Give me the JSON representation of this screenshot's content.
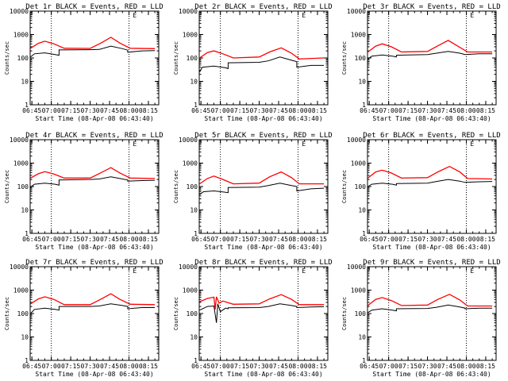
{
  "figure": {
    "ylabel": "Counts/sec",
    "xlabel": "Start Time (08-Apr-08 06:43:40)"
  },
  "chart_data": {
    "type": "line",
    "layout": "3x3 grid",
    "xticks": [
      "06:45",
      "07:00",
      "07:15",
      "07:30",
      "07:45",
      "08:00",
      "08:15"
    ],
    "xlim": [
      "06:43:40",
      "08:23:00"
    ],
    "yscale": "log",
    "ylim": [
      1,
      10000
    ],
    "yticks": [
      "1",
      "10",
      "100",
      "1000",
      "10000"
    ],
    "dotted_vlines": [
      "07:00",
      "08:00"
    ],
    "colors": {
      "events": "#000000",
      "lld": "#ff0000"
    },
    "panels": [
      {
        "title": "Det 1r BLACK = Events, RED = LLD",
        "marker": "E",
        "events": [
          {
            "t": "06:44",
            "v": 110
          },
          {
            "t": "06:47",
            "v": 150
          },
          {
            "t": "06:55",
            "v": 165
          },
          {
            "t": "07:03",
            "v": 140
          },
          {
            "t": "07:06",
            "v": 130
          },
          {
            "t": "07:06",
            "v": 220
          },
          {
            "t": "07:30",
            "v": 225
          },
          {
            "t": "07:37",
            "v": 230
          },
          {
            "t": "07:46",
            "v": 320
          },
          {
            "t": "07:55",
            "v": 250
          },
          {
            "t": "07:59",
            "v": 215
          },
          {
            "t": "07:59",
            "v": 175
          },
          {
            "t": "08:10",
            "v": 200
          },
          {
            "t": "08:20",
            "v": 205
          }
        ],
        "lld": [
          {
            "t": "06:44",
            "v": 260
          },
          {
            "t": "06:50",
            "v": 420
          },
          {
            "t": "06:55",
            "v": 520
          },
          {
            "t": "07:02",
            "v": 400
          },
          {
            "t": "07:10",
            "v": 260
          },
          {
            "t": "07:30",
            "v": 255
          },
          {
            "t": "07:38",
            "v": 420
          },
          {
            "t": "07:46",
            "v": 760
          },
          {
            "t": "07:53",
            "v": 430
          },
          {
            "t": "08:01",
            "v": 260
          },
          {
            "t": "08:20",
            "v": 250
          }
        ]
      },
      {
        "title": "Det 2r BLACK = Events, RED = LLD",
        "marker": "E",
        "events": [
          {
            "t": "06:44",
            "v": 25
          },
          {
            "t": "06:46",
            "v": 40
          },
          {
            "t": "06:55",
            "v": 45
          },
          {
            "t": "07:04",
            "v": 38
          },
          {
            "t": "07:06",
            "v": 35
          },
          {
            "t": "07:06",
            "v": 62
          },
          {
            "t": "07:30",
            "v": 65
          },
          {
            "t": "07:37",
            "v": 75
          },
          {
            "t": "07:46",
            "v": 110
          },
          {
            "t": "07:55",
            "v": 80
          },
          {
            "t": "07:59",
            "v": 70
          },
          {
            "t": "07:59",
            "v": 40
          },
          {
            "t": "08:10",
            "v": 48
          },
          {
            "t": "08:20",
            "v": 48
          }
        ],
        "lld": [
          {
            "t": "06:44",
            "v": 100
          },
          {
            "t": "06:50",
            "v": 170
          },
          {
            "t": "06:55",
            "v": 200
          },
          {
            "t": "07:02",
            "v": 150
          },
          {
            "t": "07:10",
            "v": 100
          },
          {
            "t": "07:30",
            "v": 110
          },
          {
            "t": "07:38",
            "v": 180
          },
          {
            "t": "07:47",
            "v": 270
          },
          {
            "t": "07:55",
            "v": 160
          },
          {
            "t": "08:01",
            "v": 90
          },
          {
            "t": "08:20",
            "v": 100
          }
        ]
      },
      {
        "title": "Det 3r BLACK = Events, RED = LLD",
        "marker": "E",
        "events": [
          {
            "t": "06:44",
            "v": 90
          },
          {
            "t": "06:47",
            "v": 120
          },
          {
            "t": "06:55",
            "v": 135
          },
          {
            "t": "07:03",
            "v": 120
          },
          {
            "t": "07:06",
            "v": 110
          },
          {
            "t": "07:06",
            "v": 130
          },
          {
            "t": "07:30",
            "v": 140
          },
          {
            "t": "07:37",
            "v": 160
          },
          {
            "t": "07:46",
            "v": 190
          },
          {
            "t": "07:55",
            "v": 160
          },
          {
            "t": "07:59",
            "v": 140
          },
          {
            "t": "07:59",
            "v": 140
          },
          {
            "t": "08:10",
            "v": 150
          },
          {
            "t": "08:20",
            "v": 150
          }
        ],
        "lld": [
          {
            "t": "06:44",
            "v": 180
          },
          {
            "t": "06:50",
            "v": 320
          },
          {
            "t": "06:55",
            "v": 400
          },
          {
            "t": "07:02",
            "v": 300
          },
          {
            "t": "07:10",
            "v": 180
          },
          {
            "t": "07:30",
            "v": 190
          },
          {
            "t": "07:38",
            "v": 330
          },
          {
            "t": "07:46",
            "v": 560
          },
          {
            "t": "07:53",
            "v": 330
          },
          {
            "t": "08:01",
            "v": 180
          },
          {
            "t": "08:20",
            "v": 180
          }
        ]
      },
      {
        "title": "Det 4r BLACK = Events, RED = LLD",
        "marker": "E",
        "events": [
          {
            "t": "06:44",
            "v": 95
          },
          {
            "t": "06:47",
            "v": 125
          },
          {
            "t": "06:55",
            "v": 140
          },
          {
            "t": "07:03",
            "v": 125
          },
          {
            "t": "07:06",
            "v": 115
          },
          {
            "t": "07:06",
            "v": 190
          },
          {
            "t": "07:30",
            "v": 200
          },
          {
            "t": "07:37",
            "v": 210
          },
          {
            "t": "07:46",
            "v": 260
          },
          {
            "t": "07:55",
            "v": 210
          },
          {
            "t": "07:59",
            "v": 190
          },
          {
            "t": "07:59",
            "v": 170
          },
          {
            "t": "08:10",
            "v": 180
          },
          {
            "t": "08:20",
            "v": 185
          }
        ],
        "lld": [
          {
            "t": "06:44",
            "v": 230
          },
          {
            "t": "06:50",
            "v": 350
          },
          {
            "t": "06:55",
            "v": 430
          },
          {
            "t": "07:02",
            "v": 340
          },
          {
            "t": "07:10",
            "v": 230
          },
          {
            "t": "07:30",
            "v": 230
          },
          {
            "t": "07:38",
            "v": 380
          },
          {
            "t": "07:46",
            "v": 640
          },
          {
            "t": "07:53",
            "v": 380
          },
          {
            "t": "08:01",
            "v": 230
          },
          {
            "t": "08:20",
            "v": 220
          }
        ]
      },
      {
        "title": "Det 5r BLACK = Events, RED = LLD",
        "marker": "E",
        "events": [
          {
            "t": "06:44",
            "v": 45
          },
          {
            "t": "06:47",
            "v": 60
          },
          {
            "t": "06:55",
            "v": 65
          },
          {
            "t": "07:03",
            "v": 58
          },
          {
            "t": "07:06",
            "v": 55
          },
          {
            "t": "07:06",
            "v": 90
          },
          {
            "t": "07:30",
            "v": 95
          },
          {
            "t": "07:37",
            "v": 110
          },
          {
            "t": "07:46",
            "v": 140
          },
          {
            "t": "07:55",
            "v": 110
          },
          {
            "t": "07:59",
            "v": 100
          },
          {
            "t": "07:59",
            "v": 65
          },
          {
            "t": "08:10",
            "v": 80
          },
          {
            "t": "08:20",
            "v": 85
          }
        ],
        "lld": [
          {
            "t": "06:44",
            "v": 130
          },
          {
            "t": "06:50",
            "v": 220
          },
          {
            "t": "06:55",
            "v": 280
          },
          {
            "t": "07:02",
            "v": 200
          },
          {
            "t": "07:10",
            "v": 130
          },
          {
            "t": "07:30",
            "v": 140
          },
          {
            "t": "07:38",
            "v": 260
          },
          {
            "t": "07:47",
            "v": 420
          },
          {
            "t": "07:55",
            "v": 240
          },
          {
            "t": "08:01",
            "v": 130
          },
          {
            "t": "08:20",
            "v": 130
          }
        ]
      },
      {
        "title": "Det 6r BLACK = Events, RED = LLD",
        "marker": "E",
        "events": [
          {
            "t": "06:44",
            "v": 100
          },
          {
            "t": "06:47",
            "v": 125
          },
          {
            "t": "06:55",
            "v": 140
          },
          {
            "t": "07:03",
            "v": 125
          },
          {
            "t": "07:06",
            "v": 115
          },
          {
            "t": "07:06",
            "v": 135
          },
          {
            "t": "07:30",
            "v": 140
          },
          {
            "t": "07:37",
            "v": 165
          },
          {
            "t": "07:46",
            "v": 200
          },
          {
            "t": "07:55",
            "v": 170
          },
          {
            "t": "07:59",
            "v": 150
          },
          {
            "t": "07:59",
            "v": 150
          },
          {
            "t": "08:10",
            "v": 160
          },
          {
            "t": "08:20",
            "v": 165
          }
        ],
        "lld": [
          {
            "t": "06:44",
            "v": 230
          },
          {
            "t": "06:50",
            "v": 420
          },
          {
            "t": "06:55",
            "v": 500
          },
          {
            "t": "07:02",
            "v": 380
          },
          {
            "t": "07:10",
            "v": 230
          },
          {
            "t": "07:30",
            "v": 240
          },
          {
            "t": "07:38",
            "v": 420
          },
          {
            "t": "07:47",
            "v": 720
          },
          {
            "t": "07:55",
            "v": 420
          },
          {
            "t": "08:01",
            "v": 220
          },
          {
            "t": "08:20",
            "v": 210
          }
        ]
      },
      {
        "title": "Det 7r BLACK = Events, RED = LLD",
        "marker": "E",
        "events": [
          {
            "t": "06:44",
            "v": 100
          },
          {
            "t": "06:47",
            "v": 150
          },
          {
            "t": "06:55",
            "v": 170
          },
          {
            "t": "07:03",
            "v": 150
          },
          {
            "t": "07:06",
            "v": 140
          },
          {
            "t": "07:06",
            "v": 200
          },
          {
            "t": "07:30",
            "v": 200
          },
          {
            "t": "07:37",
            "v": 210
          },
          {
            "t": "07:46",
            "v": 260
          },
          {
            "t": "07:55",
            "v": 220
          },
          {
            "t": "07:59",
            "v": 200
          },
          {
            "t": "07:59",
            "v": 160
          },
          {
            "t": "08:10",
            "v": 180
          },
          {
            "t": "08:20",
            "v": 180
          }
        ],
        "lld": [
          {
            "t": "06:44",
            "v": 260
          },
          {
            "t": "06:50",
            "v": 420
          },
          {
            "t": "06:55",
            "v": 520
          },
          {
            "t": "07:02",
            "v": 400
          },
          {
            "t": "07:10",
            "v": 240
          },
          {
            "t": "07:30",
            "v": 240
          },
          {
            "t": "07:38",
            "v": 400
          },
          {
            "t": "07:46",
            "v": 700
          },
          {
            "t": "07:53",
            "v": 400
          },
          {
            "t": "08:01",
            "v": 250
          },
          {
            "t": "08:20",
            "v": 240
          }
        ]
      },
      {
        "title": "Det 8r BLACK = Events, RED = LLD",
        "marker": "E",
        "events": [
          {
            "t": "06:44",
            "v": 140
          },
          {
            "t": "06:50",
            "v": 200
          },
          {
            "t": "06:55",
            "v": 210
          },
          {
            "t": "06:57",
            "v": 40
          },
          {
            "t": "06:58",
            "v": 260
          },
          {
            "t": "07:00",
            "v": 120
          },
          {
            "t": "07:04",
            "v": 170
          },
          {
            "t": "07:06",
            "v": 160
          },
          {
            "t": "07:06",
            "v": 175
          },
          {
            "t": "07:30",
            "v": 180
          },
          {
            "t": "07:37",
            "v": 200
          },
          {
            "t": "07:46",
            "v": 260
          },
          {
            "t": "07:55",
            "v": 220
          },
          {
            "t": "07:59",
            "v": 200
          },
          {
            "t": "07:59",
            "v": 180
          },
          {
            "t": "08:10",
            "v": 190
          },
          {
            "t": "08:20",
            "v": 195
          }
        ],
        "lld": [
          {
            "t": "06:44",
            "v": 320
          },
          {
            "t": "06:50",
            "v": 440
          },
          {
            "t": "06:55",
            "v": 500
          },
          {
            "t": "06:56",
            "v": 150
          },
          {
            "t": "06:57",
            "v": 520
          },
          {
            "t": "06:59",
            "v": 280
          },
          {
            "t": "07:02",
            "v": 340
          },
          {
            "t": "07:10",
            "v": 250
          },
          {
            "t": "07:30",
            "v": 260
          },
          {
            "t": "07:38",
            "v": 420
          },
          {
            "t": "07:47",
            "v": 640
          },
          {
            "t": "07:55",
            "v": 400
          },
          {
            "t": "08:01",
            "v": 240
          },
          {
            "t": "08:20",
            "v": 240
          }
        ]
      },
      {
        "title": "Det 9r BLACK = Events, RED = LLD",
        "marker": "E",
        "events": [
          {
            "t": "06:44",
            "v": 110
          },
          {
            "t": "06:47",
            "v": 140
          },
          {
            "t": "06:55",
            "v": 160
          },
          {
            "t": "07:03",
            "v": 140
          },
          {
            "t": "07:06",
            "v": 130
          },
          {
            "t": "07:06",
            "v": 160
          },
          {
            "t": "07:30",
            "v": 165
          },
          {
            "t": "07:37",
            "v": 185
          },
          {
            "t": "07:46",
            "v": 230
          },
          {
            "t": "07:55",
            "v": 190
          },
          {
            "t": "07:59",
            "v": 170
          },
          {
            "t": "07:59",
            "v": 160
          },
          {
            "t": "08:10",
            "v": 170
          },
          {
            "t": "08:20",
            "v": 170
          }
        ],
        "lld": [
          {
            "t": "06:44",
            "v": 220
          },
          {
            "t": "06:50",
            "v": 400
          },
          {
            "t": "06:55",
            "v": 480
          },
          {
            "t": "07:02",
            "v": 360
          },
          {
            "t": "07:10",
            "v": 220
          },
          {
            "t": "07:30",
            "v": 230
          },
          {
            "t": "07:38",
            "v": 400
          },
          {
            "t": "07:47",
            "v": 660
          },
          {
            "t": "07:55",
            "v": 380
          },
          {
            "t": "08:01",
            "v": 210
          },
          {
            "t": "08:20",
            "v": 210
          }
        ]
      }
    ]
  }
}
